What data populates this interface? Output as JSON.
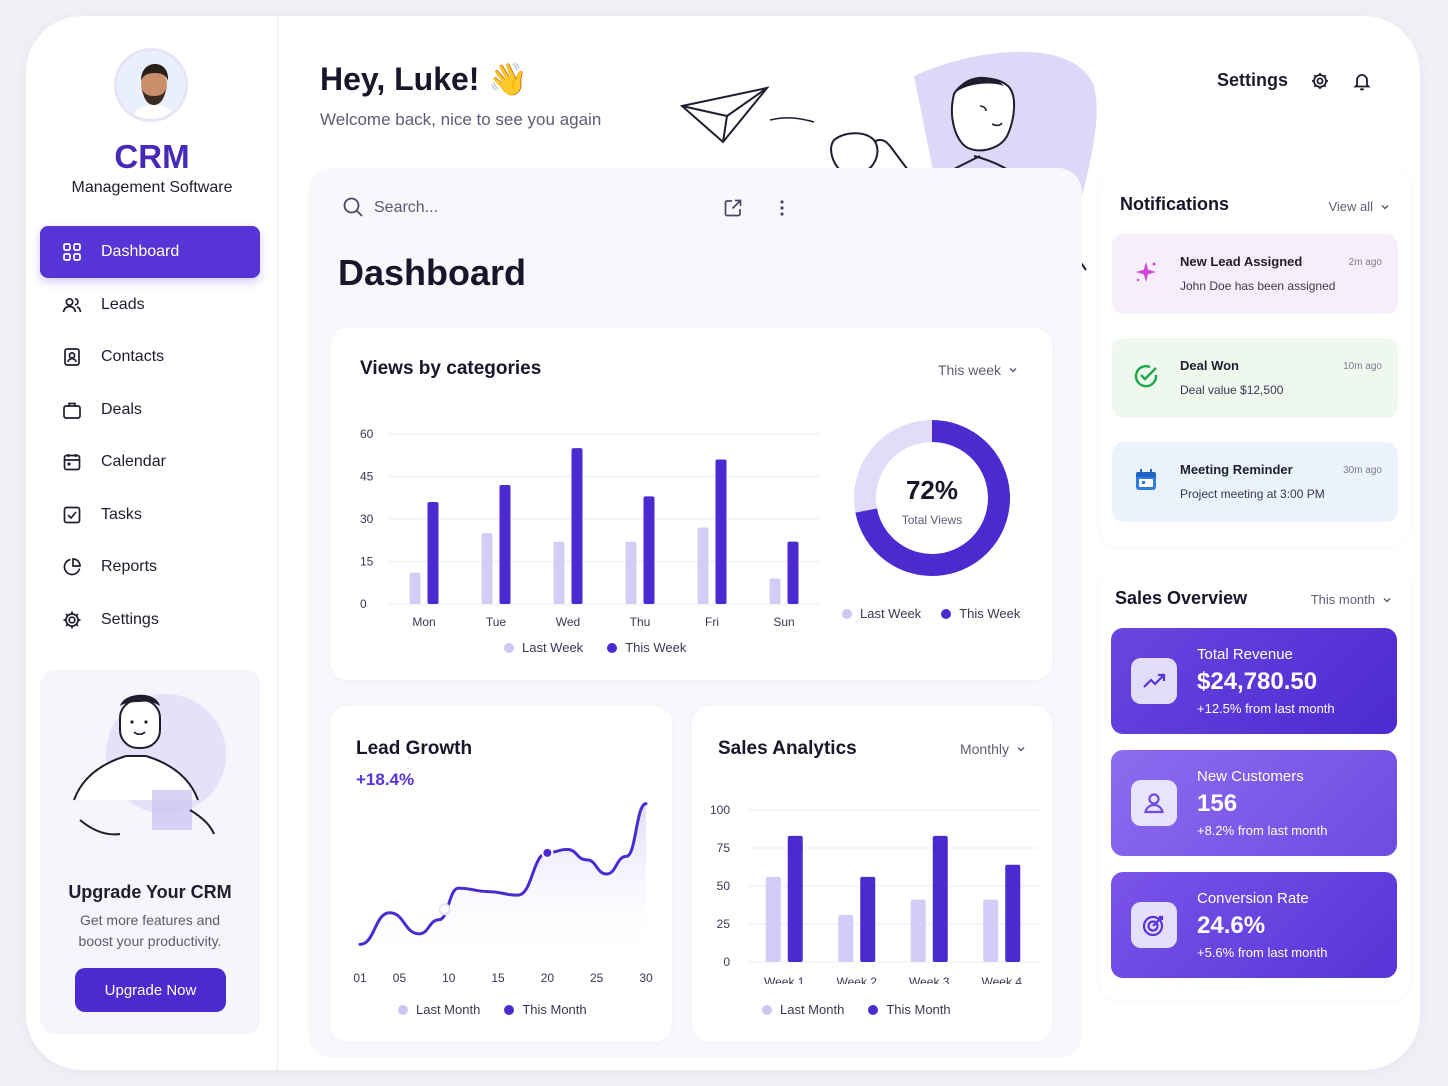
{
  "brand": {
    "title": "CRM",
    "subtitle": "Management Software"
  },
  "nav": [
    {
      "label": "Dashboard",
      "icon": "grid-icon",
      "active": true
    },
    {
      "label": "Leads",
      "icon": "users-icon"
    },
    {
      "label": "Contacts",
      "icon": "contact-card-icon"
    },
    {
      "label": "Deals",
      "icon": "briefcase-icon"
    },
    {
      "label": "Calendar",
      "icon": "calendar-icon"
    },
    {
      "label": "Tasks",
      "icon": "checkbox-icon"
    },
    {
      "label": "Reports",
      "icon": "pie-chart-icon"
    },
    {
      "label": "Settings",
      "icon": "gear-icon"
    }
  ],
  "upgrade": {
    "title": "Upgrade Your CRM",
    "text": "Get more features and boost your productivity.",
    "button": "Upgrade Now"
  },
  "header": {
    "greeting": "Hey, Luke! 👋",
    "subtitle": "Welcome back, nice to see you again",
    "settings_label": "Settings"
  },
  "search": {
    "placeholder": "Search..."
  },
  "page_title": "Dashboard",
  "views_card": {
    "title": "Views by categories",
    "period": "This week",
    "donut_value": "72%",
    "donut_label": "Total Views",
    "legend": [
      "Last Week",
      "This Week"
    ]
  },
  "lead_card": {
    "title": "Lead Growth",
    "growth": "+18.4%",
    "legend": [
      "Last Month",
      "This Month"
    ]
  },
  "sales_analytics": {
    "title": "Sales Analytics",
    "period": "Monthly",
    "legend": [
      "Last Month",
      "This Month"
    ]
  },
  "notifications": {
    "title": "Notifications",
    "view_all": "View all",
    "items": [
      {
        "title": "New Lead Assigned",
        "text": "John Doe has been assigned",
        "time": "2m ago",
        "icon": "sparkle-icon"
      },
      {
        "title": "Deal Won",
        "text": "Deal value $12,500",
        "time": "10m ago",
        "icon": "check-circle-icon"
      },
      {
        "title": "Meeting Reminder",
        "text": "Project meeting at 3:00 PM",
        "time": "30m ago",
        "icon": "calendar-icon"
      }
    ]
  },
  "sales_overview": {
    "title": "Sales Overview",
    "period": "This month",
    "stats": [
      {
        "label": "Total Revenue",
        "value": "$24,780.50",
        "sub": "+12.5% from last month",
        "icon": "trend-up-icon"
      },
      {
        "label": "New Customers",
        "value": "156",
        "sub": "+8.2% from last month",
        "icon": "user-icon"
      },
      {
        "label": "Conversion Rate",
        "value": "24.6%",
        "sub": "+5.6% from last month",
        "icon": "target-icon"
      }
    ]
  },
  "colors": {
    "primary": "#5634d6",
    "light": "#d4ccf6",
    "bg": "#f1f0f6"
  },
  "chart_data": [
    {
      "type": "bar",
      "title": "Views by categories",
      "categories": [
        "Mon",
        "Tue",
        "Wed",
        "Thu",
        "Fri",
        "Sun"
      ],
      "series": [
        {
          "name": "Last Week",
          "values": [
            11,
            25,
            22,
            22,
            27,
            9
          ]
        },
        {
          "name": "This Week",
          "values": [
            36,
            42,
            55,
            38,
            51,
            22
          ]
        }
      ],
      "yticks": [
        0,
        15,
        30,
        45,
        60
      ],
      "ylim": [
        0,
        60
      ]
    },
    {
      "type": "pie",
      "title": "Total Views",
      "labels": [
        "This Week",
        "Last Week"
      ],
      "values": [
        72,
        28
      ]
    },
    {
      "type": "area",
      "title": "Lead Growth",
      "xticks": [
        "01",
        "05",
        "10",
        "15",
        "20",
        "25",
        "30"
      ],
      "x": [
        1,
        4,
        7,
        9,
        11,
        14,
        17,
        20,
        22,
        24,
        26,
        28,
        30
      ],
      "y": [
        10,
        28,
        16,
        24,
        42,
        40,
        38,
        62,
        64,
        58,
        50,
        60,
        90
      ],
      "ylim": [
        0,
        100
      ]
    },
    {
      "type": "bar",
      "title": "Sales Analytics",
      "categories": [
        "Week 1",
        "Week 2",
        "Week 3",
        "Week 4"
      ],
      "series": [
        {
          "name": "Last Month",
          "values": [
            56,
            31,
            41,
            41
          ]
        },
        {
          "name": "This Month",
          "values": [
            83,
            56,
            83,
            64
          ]
        }
      ],
      "yticks": [
        0,
        25,
        50,
        75,
        100
      ],
      "ylim": [
        0,
        100
      ]
    }
  ]
}
